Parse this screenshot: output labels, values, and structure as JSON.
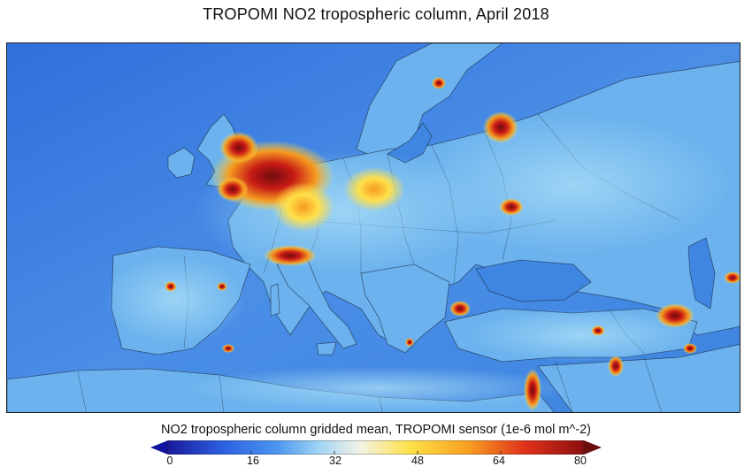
{
  "title": "TROPOMI NO2 tropospheric column, April 2018",
  "colorbar": {
    "label": "NO2 tropospheric column gridded mean, TROPOMI sensor (1e-6 mol m^-2)",
    "ticks": [
      "0",
      "16",
      "32",
      "48",
      "64",
      "80"
    ],
    "range": [
      0,
      80
    ],
    "colors": [
      "#1a1a9c",
      "#2b5fe0",
      "#4b94f0",
      "#9ed3f5",
      "#f2f2e6",
      "#ffe24a",
      "#f8a020",
      "#e0301c",
      "#8c0f0f"
    ],
    "arrow_low_color": "#1212a0",
    "arrow_high_color": "#6a0d0d"
  },
  "map": {
    "background_color": "#4a8ee6",
    "land_color": "#72b6f0",
    "sea_color": "#3f86e2",
    "hotspot_colors": {
      "yellow": "#ffe04a",
      "orange": "#f59a1e",
      "red": "#c81a16",
      "darkred": "#6e0c0c"
    }
  }
}
